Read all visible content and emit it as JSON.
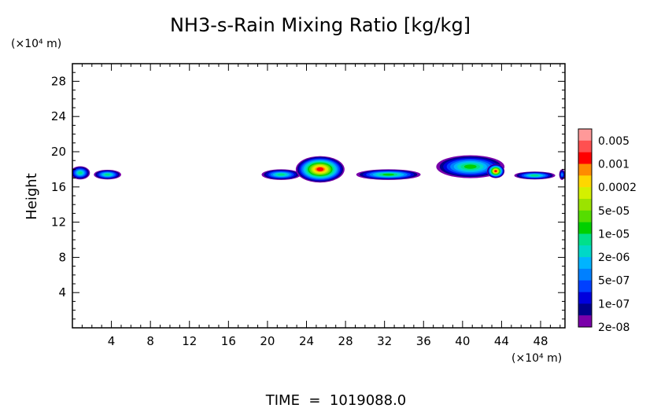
{
  "chart_data": {
    "type": "heatmap",
    "title": "NH3-s-Rain Mixing Ratio [kg/kg]",
    "xlabel": "",
    "ylabel": "Height",
    "x_unit": "(×10⁴ m)",
    "y_unit": "(×10⁴ m)",
    "footer": "TIME  =  1019088.0",
    "xlim": [
      0,
      50.5
    ],
    "ylim": [
      0,
      30
    ],
    "x_ticks": [
      4,
      8,
      12,
      16,
      20,
      24,
      28,
      32,
      36,
      40,
      44,
      48
    ],
    "y_ticks": [
      4,
      8,
      12,
      16,
      20,
      24,
      28
    ],
    "colorbar": {
      "labels": [
        "0.005",
        "0.001",
        "0.0002",
        "5e-05",
        "1e-05",
        "2e-06",
        "5e-07",
        "1e-07",
        "2e-08"
      ],
      "colors": [
        "#ff9999",
        "#ff5050",
        "#ff0000",
        "#ff8c00",
        "#ffd700",
        "#d4f000",
        "#9be300",
        "#55dd00",
        "#00d000",
        "#00e08a",
        "#00d8c8",
        "#00b4ff",
        "#0080ff",
        "#0040ff",
        "#0000dd",
        "#00008c",
        "#7a00aa"
      ]
    },
    "cells": [
      {
        "x": 0.8,
        "y": 17.6,
        "w": 2.0,
        "h": 1.5,
        "level": 9
      },
      {
        "x": 3.6,
        "y": 17.4,
        "w": 2.8,
        "h": 1.1,
        "level": 9
      },
      {
        "x": 21.4,
        "y": 17.4,
        "w": 4.0,
        "h": 1.2,
        "level": 9
      },
      {
        "x": 25.4,
        "y": 18.0,
        "w": 5.0,
        "h": 3.0,
        "level": 2
      },
      {
        "x": 32.4,
        "y": 17.4,
        "w": 6.6,
        "h": 1.2,
        "level": 8
      },
      {
        "x": 40.8,
        "y": 18.3,
        "w": 7.0,
        "h": 2.6,
        "level": 8
      },
      {
        "x": 43.4,
        "y": 17.8,
        "w": 1.8,
        "h": 1.6,
        "level": 2
      },
      {
        "x": 47.4,
        "y": 17.3,
        "w": 4.2,
        "h": 0.9,
        "level": 9
      },
      {
        "x": 50.2,
        "y": 17.4,
        "w": 0.6,
        "h": 1.2,
        "level": 12
      }
    ]
  }
}
